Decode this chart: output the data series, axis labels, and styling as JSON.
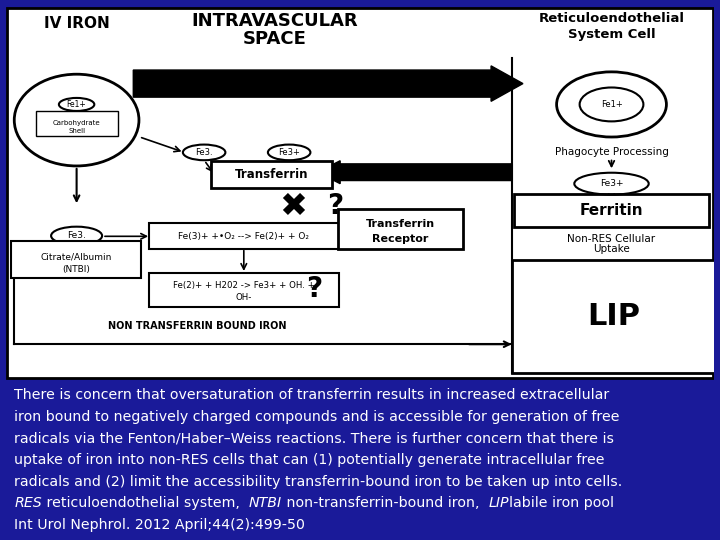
{
  "bg_color": "#1a1a99",
  "diagram_bg": "#ffffff",
  "caption_lines_normal": [
    "There is concern that oversaturation of transferrin results in increased extracellular",
    "iron bound to negatively charged compounds and is accessible for generation of free",
    "radicals via the Fenton/Haber–Weiss reactions. There is further concern that there is",
    "uptake of iron into non-RES cells that can (1) potentially generate intracellular free",
    "radicals and (2) limit the accessibility transferrin-bound iron to be taken up into cells."
  ],
  "caption_italic_parts": [
    [
      "RES",
      true
    ],
    [
      " reticuloendothelial system,  ",
      false
    ],
    [
      "NTBI",
      true
    ],
    [
      " non-transferrin-bound iron,  ",
      false
    ],
    [
      "LIP",
      true
    ],
    [
      "labile iron pool",
      false
    ]
  ],
  "caption_last_line": "Int Urol Nephrol. 2012 April;44(2):499-50",
  "caption_color": "#ffffff",
  "caption_fontsize": 10.2
}
